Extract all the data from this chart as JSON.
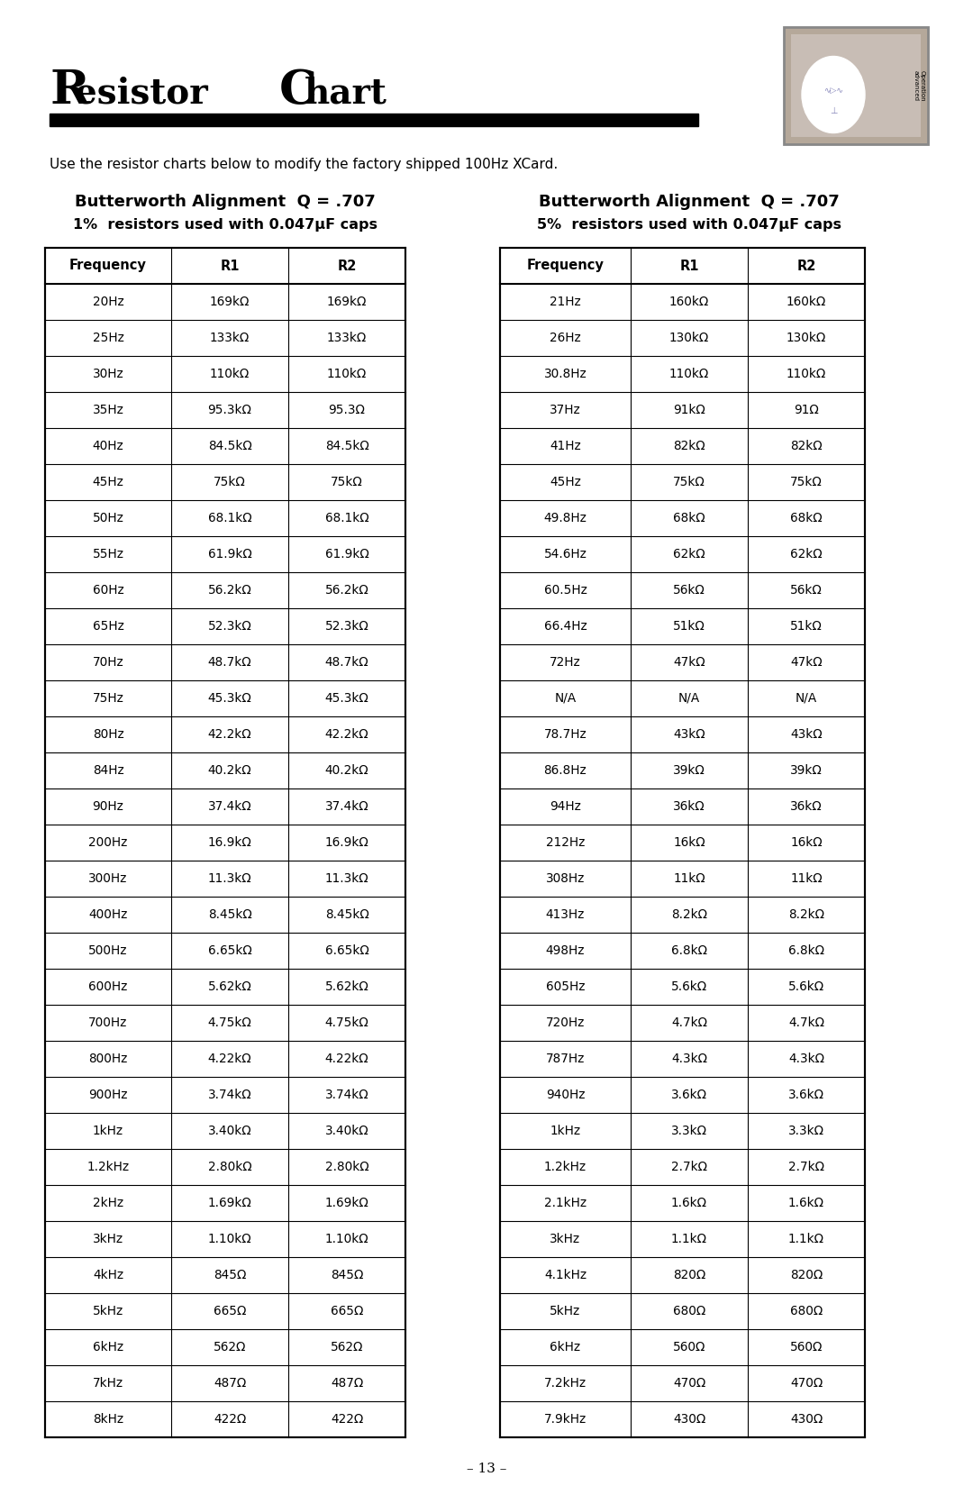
{
  "title_R": "R",
  "title_rest1": "esistor ",
  "title_C": "C",
  "title_rest2": "hart",
  "subtitle": "Use the resistor charts below to modify the factory shipped 100Hz XCard.",
  "left_heading1": "Butterworth Alignment  Q = .707",
  "left_heading2": "1%  resistors used with 0.047μF caps",
  "right_heading1": "Butterworth Alignment  Q = .707",
  "right_heading2": "5%  resistors used with 0.047μF caps",
  "left_table": {
    "headers": [
      "Frequency",
      "R1",
      "R2"
    ],
    "rows": [
      [
        "20Hz",
        "169kΩ",
        "169kΩ"
      ],
      [
        "25Hz",
        "133kΩ",
        "133kΩ"
      ],
      [
        "30Hz",
        "110kΩ",
        "110kΩ"
      ],
      [
        "35Hz",
        "95.3kΩ",
        "95.3Ω"
      ],
      [
        "40Hz",
        "84.5kΩ",
        "84.5kΩ"
      ],
      [
        "45Hz",
        "75kΩ",
        "75kΩ"
      ],
      [
        "50Hz",
        "68.1kΩ",
        "68.1kΩ"
      ],
      [
        "55Hz",
        "61.9kΩ",
        "61.9kΩ"
      ],
      [
        "60Hz",
        "56.2kΩ",
        "56.2kΩ"
      ],
      [
        "65Hz",
        "52.3kΩ",
        "52.3kΩ"
      ],
      [
        "70Hz",
        "48.7kΩ",
        "48.7kΩ"
      ],
      [
        "75Hz",
        "45.3kΩ",
        "45.3kΩ"
      ],
      [
        "80Hz",
        "42.2kΩ",
        "42.2kΩ"
      ],
      [
        "84Hz",
        "40.2kΩ",
        "40.2kΩ"
      ],
      [
        "90Hz",
        "37.4kΩ",
        "37.4kΩ"
      ],
      [
        "200Hz",
        "16.9kΩ",
        "16.9kΩ"
      ],
      [
        "300Hz",
        "11.3kΩ",
        "11.3kΩ"
      ],
      [
        "400Hz",
        "8.45kΩ",
        "8.45kΩ"
      ],
      [
        "500Hz",
        "6.65kΩ",
        "6.65kΩ"
      ],
      [
        "600Hz",
        "5.62kΩ",
        "5.62kΩ"
      ],
      [
        "700Hz",
        "4.75kΩ",
        "4.75kΩ"
      ],
      [
        "800Hz",
        "4.22kΩ",
        "4.22kΩ"
      ],
      [
        "900Hz",
        "3.74kΩ",
        "3.74kΩ"
      ],
      [
        "1kHz",
        "3.40kΩ",
        "3.40kΩ"
      ],
      [
        "1.2kHz",
        "2.80kΩ",
        "2.80kΩ"
      ],
      [
        "2kHz",
        "1.69kΩ",
        "1.69kΩ"
      ],
      [
        "3kHz",
        "1.10kΩ",
        "1.10kΩ"
      ],
      [
        "4kHz",
        "845Ω",
        "845Ω"
      ],
      [
        "5kHz",
        "665Ω",
        "665Ω"
      ],
      [
        "6kHz",
        "562Ω",
        "562Ω"
      ],
      [
        "7kHz",
        "487Ω",
        "487Ω"
      ],
      [
        "8kHz",
        "422Ω",
        "422Ω"
      ]
    ]
  },
  "right_table": {
    "headers": [
      "Frequency",
      "R1",
      "R2"
    ],
    "rows": [
      [
        "21Hz",
        "160kΩ",
        "160kΩ"
      ],
      [
        "26Hz",
        "130kΩ",
        "130kΩ"
      ],
      [
        "30.8Hz",
        "110kΩ",
        "110kΩ"
      ],
      [
        "37Hz",
        "91kΩ",
        "91Ω"
      ],
      [
        "41Hz",
        "82kΩ",
        "82kΩ"
      ],
      [
        "45Hz",
        "75kΩ",
        "75kΩ"
      ],
      [
        "49.8Hz",
        "68kΩ",
        "68kΩ"
      ],
      [
        "54.6Hz",
        "62kΩ",
        "62kΩ"
      ],
      [
        "60.5Hz",
        "56kΩ",
        "56kΩ"
      ],
      [
        "66.4Hz",
        "51kΩ",
        "51kΩ"
      ],
      [
        "72Hz",
        "47kΩ",
        "47kΩ"
      ],
      [
        "N/A",
        "N/A",
        "N/A"
      ],
      [
        "78.7Hz",
        "43kΩ",
        "43kΩ"
      ],
      [
        "86.8Hz",
        "39kΩ",
        "39kΩ"
      ],
      [
        "94Hz",
        "36kΩ",
        "36kΩ"
      ],
      [
        "212Hz",
        "16kΩ",
        "16kΩ"
      ],
      [
        "308Hz",
        "11kΩ",
        "11kΩ"
      ],
      [
        "413Hz",
        "8.2kΩ",
        "8.2kΩ"
      ],
      [
        "498Hz",
        "6.8kΩ",
        "6.8kΩ"
      ],
      [
        "605Hz",
        "5.6kΩ",
        "5.6kΩ"
      ],
      [
        "720Hz",
        "4.7kΩ",
        "4.7kΩ"
      ],
      [
        "787Hz",
        "4.3kΩ",
        "4.3kΩ"
      ],
      [
        "940Hz",
        "3.6kΩ",
        "3.6kΩ"
      ],
      [
        "1kHz",
        "3.3kΩ",
        "3.3kΩ"
      ],
      [
        "1.2kHz",
        "2.7kΩ",
        "2.7kΩ"
      ],
      [
        "2.1kHz",
        "1.6kΩ",
        "1.6kΩ"
      ],
      [
        "3kHz",
        "1.1kΩ",
        "1.1kΩ"
      ],
      [
        "4.1kHz",
        "820Ω",
        "820Ω"
      ],
      [
        "5kHz",
        "680Ω",
        "680Ω"
      ],
      [
        "6kHz",
        "560Ω",
        "560Ω"
      ],
      [
        "7.2kHz",
        "470Ω",
        "470Ω"
      ],
      [
        "7.9kHz",
        "430Ω",
        "430Ω"
      ]
    ]
  },
  "page_number": "– 13 –",
  "bg_color": "#ffffff",
  "logo_bg": "#b5a89a",
  "logo_inner_bg": "#c8bdb5"
}
